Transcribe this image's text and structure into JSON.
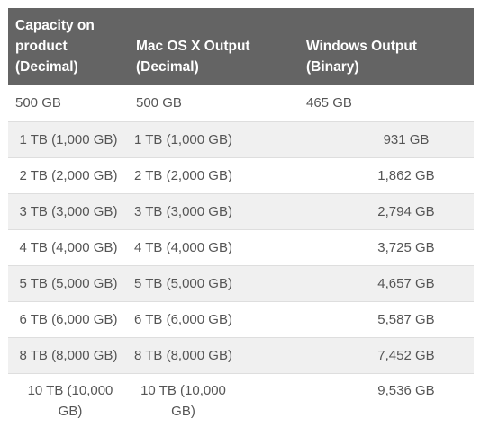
{
  "table": {
    "headers": [
      "Capacity on product (Decimal)",
      "Mac OS X Output (Decimal)",
      "Windows Output (Binary)"
    ],
    "rows": [
      [
        "500 GB",
        "500 GB",
        "465 GB"
      ],
      [
        "1 TB (1,000 GB)",
        "1 TB (1,000 GB)",
        "931 GB"
      ],
      [
        "2 TB (2,000 GB)",
        "2 TB (2,000 GB)",
        "1,862 GB"
      ],
      [
        "3 TB (3,000 GB)",
        "3 TB (3,000 GB)",
        "2,794 GB"
      ],
      [
        "4 TB (4,000 GB)",
        "4 TB (4,000 GB)",
        "3,725 GB"
      ],
      [
        "5 TB (5,000 GB)",
        "5 TB (5,000 GB)",
        "4,657 GB"
      ],
      [
        "6 TB (6,000 GB)",
        "6 TB (6,000 GB)",
        "5,587 GB"
      ],
      [
        "8 TB (8,000 GB)",
        "8 TB (8,000 GB)",
        "7,452 GB"
      ],
      [
        "10 TB (10,000 GB)",
        "10 TB (10,000 GB)",
        "9,536 GB"
      ]
    ]
  },
  "colors": {
    "header_background": "#646464",
    "header_text": "#ffffff",
    "body_text": "#555555",
    "stripe": "#f0f0f0",
    "row_border": "#dedede"
  }
}
